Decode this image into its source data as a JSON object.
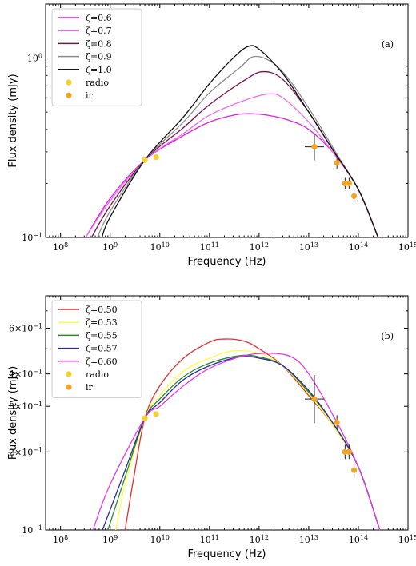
{
  "chart_data": [
    {
      "type": "line",
      "panel_label": "(a)",
      "xlabel": "Frequency (Hz)",
      "ylabel": "Flux density (mJy)",
      "xscale": "log",
      "yscale": "log",
      "xlim": [
        50000000.0,
        1000000000000000.0
      ],
      "ylim": [
        0.1,
        2.0
      ],
      "xtick_values": [
        100000000.0,
        1000000000.0,
        10000000000.0,
        100000000000.0,
        1000000000000.0,
        10000000000000.0,
        100000000000000.0,
        1000000000000000.0
      ],
      "xtick_labels": [
        "10^8",
        "10^9",
        "10^10",
        "10^11",
        "10^12",
        "10^13",
        "10^14",
        "10^15"
      ],
      "ytick_values": [
        0.1,
        1.0
      ],
      "ytick_labels": [
        "10^-1",
        "10^0"
      ],
      "legend_position": "top-left",
      "series": [
        {
          "name": "ζ=0.6",
          "color": "#e01ee0",
          "points": [
            [
              320000000.0,
              0.1
            ],
            [
              1000000000.0,
              0.165
            ],
            [
              5000000000.0,
              0.27
            ],
            [
              30000000000.0,
              0.37
            ],
            [
              100000000000.0,
              0.44
            ],
            [
              300000000000.0,
              0.48
            ],
            [
              600000000000.0,
              0.49
            ],
            [
              1500000000000.0,
              0.48
            ],
            [
              4000000000000.0,
              0.45
            ],
            [
              10000000000000.0,
              0.4
            ],
            [
              30000000000000.0,
              0.3
            ],
            [
              100000000000000.0,
              0.185
            ],
            [
              250000000000000.0,
              0.1
            ]
          ]
        },
        {
          "name": "ζ=0.7",
          "color": "#ee6cee",
          "points": [
            [
              320000000.0,
              0.1
            ],
            [
              1000000000.0,
              0.16
            ],
            [
              5000000000.0,
              0.27
            ],
            [
              30000000000.0,
              0.38
            ],
            [
              100000000000.0,
              0.48
            ],
            [
              500000000000.0,
              0.58
            ],
            [
              1500000000000.0,
              0.63
            ],
            [
              3000000000000.0,
              0.6
            ],
            [
              10000000000000.0,
              0.44
            ],
            [
              30000000000000.0,
              0.3
            ],
            [
              100000000000000.0,
              0.185
            ],
            [
              250000000000000.0,
              0.1
            ]
          ]
        },
        {
          "name": "ζ=0.8",
          "color": "#7a1050",
          "points": [
            [
              420000000.0,
              0.1
            ],
            [
              1000000000.0,
              0.15
            ],
            [
              5000000000.0,
              0.27
            ],
            [
              30000000000.0,
              0.41
            ],
            [
              100000000000.0,
              0.55
            ],
            [
              500000000000.0,
              0.75
            ],
            [
              1200000000000.0,
              0.84
            ],
            [
              3000000000000.0,
              0.76
            ],
            [
              10000000000000.0,
              0.5
            ],
            [
              30000000000000.0,
              0.31
            ],
            [
              100000000000000.0,
              0.185
            ],
            [
              250000000000000.0,
              0.1
            ]
          ]
        },
        {
          "name": "ζ=0.9",
          "color": "#8c8c8c",
          "points": [
            [
              550000000.0,
              0.1
            ],
            [
              1000000000.0,
              0.14
            ],
            [
              5000000000.0,
              0.27
            ],
            [
              30000000000.0,
              0.44
            ],
            [
              100000000000.0,
              0.64
            ],
            [
              400000000000.0,
              0.88
            ],
            [
              800000000000.0,
              1.02
            ],
            [
              2000000000000.0,
              0.93
            ],
            [
              5000000000000.0,
              0.7
            ],
            [
              15000000000000.0,
              0.44
            ],
            [
              40000000000000.0,
              0.28
            ],
            [
              100000000000000.0,
              0.185
            ],
            [
              250000000000000.0,
              0.1
            ]
          ]
        },
        {
          "name": "ζ=1.0",
          "color": "#111111",
          "points": [
            [
              680000000.0,
              0.1
            ],
            [
              1000000000.0,
              0.13
            ],
            [
              5000000000.0,
              0.27
            ],
            [
              30000000000.0,
              0.47
            ],
            [
              100000000000.0,
              0.72
            ],
            [
              300000000000.0,
              1.0
            ],
            [
              600000000000.0,
              1.16
            ],
            [
              1000000000000.0,
              1.12
            ],
            [
              3000000000000.0,
              0.82
            ],
            [
              10000000000000.0,
              0.5
            ],
            [
              30000000000000.0,
              0.31
            ],
            [
              100000000000000.0,
              0.185
            ],
            [
              250000000000000.0,
              0.1
            ]
          ]
        }
      ],
      "data_points": [
        {
          "name": "radio",
          "color": "#f5d22a",
          "points": [
            [
              5000000000.0,
              0.27
            ],
            [
              8400000000.0,
              0.28
            ]
          ]
        },
        {
          "name": "ir",
          "color": "#f2a524",
          "points": [
            [
              13000000000000.0,
              0.32
            ],
            [
              37000000000000.0,
              0.26
            ],
            [
              54000000000000.0,
              0.2
            ],
            [
              65000000000000.0,
              0.2
            ],
            [
              82000000000000.0,
              0.17
            ]
          ]
        }
      ]
    },
    {
      "type": "line",
      "panel_label": "(b)",
      "xlabel": "Frequency (Hz)",
      "ylabel": "Flux density (mJy)",
      "xscale": "log",
      "yscale": "log",
      "xlim": [
        50000000.0,
        1000000000000000.0
      ],
      "ylim": [
        0.1,
        0.8
      ],
      "xtick_values": [
        100000000.0,
        1000000000.0,
        10000000000.0,
        100000000000.0,
        1000000000000.0,
        10000000000000.0,
        100000000000000.0,
        1000000000000000.0
      ],
      "xtick_labels": [
        "10^8",
        "10^9",
        "10^10",
        "10^11",
        "10^12",
        "10^13",
        "10^14",
        "10^15"
      ],
      "ytick_values": [
        0.1,
        0.2,
        0.3,
        0.4,
        0.6
      ],
      "ytick_labels": [
        "10^-1",
        "2×10^-1",
        "3×10^-1",
        "4×10^-1",
        "6×10^-1"
      ],
      "legend_position": "top-left",
      "series": [
        {
          "name": "ζ=0.50",
          "color": "#e03030",
          "points": [
            [
              2000000000.0,
              0.1
            ],
            [
              3000000000.0,
              0.16
            ],
            [
              5000000000.0,
              0.27
            ],
            [
              10000000000.0,
              0.36
            ],
            [
              30000000000.0,
              0.46
            ],
            [
              100000000000.0,
              0.53
            ],
            [
              200000000000.0,
              0.545
            ],
            [
              500000000000.0,
              0.535
            ],
            [
              1000000000000.0,
              0.5
            ],
            [
              3000000000000.0,
              0.43
            ],
            [
              10000000000000.0,
              0.33
            ],
            [
              30000000000000.0,
              0.255
            ],
            [
              100000000000000.0,
              0.175
            ],
            [
              270000000000000.0,
              0.1
            ]
          ]
        },
        {
          "name": "ζ=0.53",
          "color": "#ffff44",
          "points": [
            [
              1300000000.0,
              0.1
            ],
            [
              2000000000.0,
              0.15
            ],
            [
              5000000000.0,
              0.27
            ],
            [
              10000000000.0,
              0.33
            ],
            [
              30000000000.0,
              0.41
            ],
            [
              100000000000.0,
              0.46
            ],
            [
              300000000000.0,
              0.49
            ],
            [
              1000000000000.0,
              0.48
            ],
            [
              3000000000000.0,
              0.43
            ],
            [
              10000000000000.0,
              0.335
            ],
            [
              30000000000000.0,
              0.255
            ],
            [
              100000000000000.0,
              0.175
            ],
            [
              270000000000000.0,
              0.1
            ]
          ]
        },
        {
          "name": "ζ=0.55",
          "color": "#2a8a2a",
          "points": [
            [
              900000000.0,
              0.1
            ],
            [
              2000000000.0,
              0.16
            ],
            [
              5000000000.0,
              0.27
            ],
            [
              10000000000.0,
              0.32
            ],
            [
              30000000000.0,
              0.39
            ],
            [
              100000000000.0,
              0.44
            ],
            [
              400000000000.0,
              0.47
            ],
            [
              1000000000000.0,
              0.465
            ],
            [
              3000000000000.0,
              0.43
            ],
            [
              10000000000000.0,
              0.34
            ],
            [
              30000000000000.0,
              0.26
            ],
            [
              100000000000000.0,
              0.175
            ],
            [
              270000000000000.0,
              0.1
            ]
          ]
        },
        {
          "name": "ζ=0.57",
          "color": "#2a2aa0",
          "points": [
            [
              700000000.0,
              0.1
            ],
            [
              2000000000.0,
              0.17
            ],
            [
              5000000000.0,
              0.27
            ],
            [
              10000000000.0,
              0.31
            ],
            [
              30000000000.0,
              0.38
            ],
            [
              100000000000.0,
              0.43
            ],
            [
              400000000000.0,
              0.465
            ],
            [
              1000000000000.0,
              0.46
            ],
            [
              3000000000000.0,
              0.43
            ],
            [
              10000000000000.0,
              0.345
            ],
            [
              30000000000000.0,
              0.26
            ],
            [
              100000000000000.0,
              0.175
            ],
            [
              270000000000000.0,
              0.1
            ]
          ]
        },
        {
          "name": "ζ=0.60",
          "color": "#e838e8",
          "points": [
            [
              450000000.0,
              0.1
            ],
            [
              1000000000.0,
              0.15
            ],
            [
              5000000000.0,
              0.27
            ],
            [
              10000000000.0,
              0.3
            ],
            [
              30000000000.0,
              0.36
            ],
            [
              100000000000.0,
              0.42
            ],
            [
              500000000000.0,
              0.47
            ],
            [
              2000000000000.0,
              0.48
            ],
            [
              5000000000000.0,
              0.46
            ],
            [
              10000000000000.0,
              0.4
            ],
            [
              30000000000000.0,
              0.28
            ],
            [
              100000000000000.0,
              0.175
            ],
            [
              270000000000000.0,
              0.1
            ]
          ]
        }
      ],
      "data_points": [
        {
          "name": "radio",
          "color": "#f5d22a",
          "points": [
            [
              5000000000.0,
              0.27
            ],
            [
              8400000000.0,
              0.28
            ]
          ]
        },
        {
          "name": "ir",
          "color": "#f2a524",
          "points": [
            [
              13000000000000.0,
              0.32
            ],
            [
              37000000000000.0,
              0.26
            ],
            [
              54000000000000.0,
              0.2
            ],
            [
              65000000000000.0,
              0.2
            ],
            [
              82000000000000.0,
              0.17
            ]
          ]
        }
      ]
    }
  ]
}
